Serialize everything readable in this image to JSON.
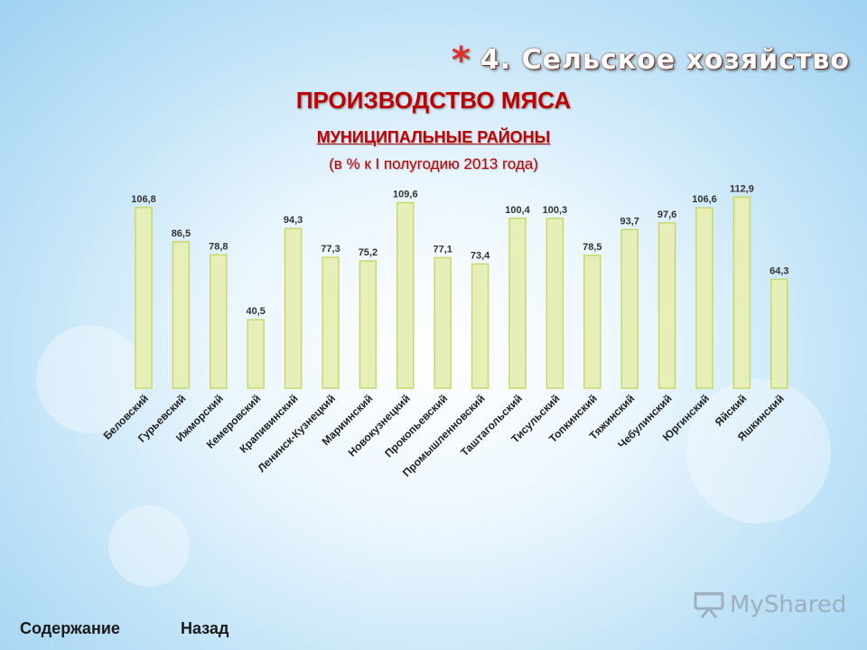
{
  "header": {
    "section_title": "4. Сельское хозяйство",
    "main_title": "ПРОИЗВОДСТВО МЯСА",
    "subtitle": "МУНИЦИПАЛЬНЫЕ РАЙОНЫ",
    "note": "(в % к I полугодию 2013 года)"
  },
  "nav": {
    "contents_label": "Содержание",
    "back_label": "Назад"
  },
  "logo": {
    "text": "MyShared"
  },
  "colors": {
    "title_red": "#c00000",
    "bar_fill": "#e6efb8",
    "bar_stroke": "#c9d86a",
    "star_red": "#e0302a"
  },
  "chart_data": {
    "type": "bar",
    "title": "",
    "xlabel": "",
    "ylabel": "",
    "categories": [
      "Беловский",
      "Гурьевский",
      "Ижморский",
      "Кемеровский",
      "Крапивинский",
      "Ленинск-Кузнецкий",
      "Мариинский",
      "Новокузнецкий",
      "Прокопьевский",
      "Промышленновский",
      "Таштагольский",
      "Тисульский",
      "Топкинский",
      "Тяжинский",
      "Чебулинский",
      "Юргинский",
      "Яйский",
      "Яшкинский"
    ],
    "values": [
      106.8,
      86.5,
      78.8,
      40.5,
      94.3,
      77.3,
      75.2,
      109.6,
      77.1,
      73.4,
      100.4,
      100.3,
      78.5,
      93.7,
      97.6,
      106.6,
      112.9,
      64.3
    ],
    "value_labels": [
      "106,8",
      "86,5",
      "78,8",
      "40,5",
      "94,3",
      "77,3",
      "75,2",
      "109,6",
      "77,1",
      "73,4",
      "100,4",
      "100,3",
      "78,5",
      "93,7",
      "97,6",
      "106,6",
      "112,9",
      "64,3"
    ],
    "ylim": [
      0,
      120
    ],
    "grid": false,
    "legend": "none"
  }
}
